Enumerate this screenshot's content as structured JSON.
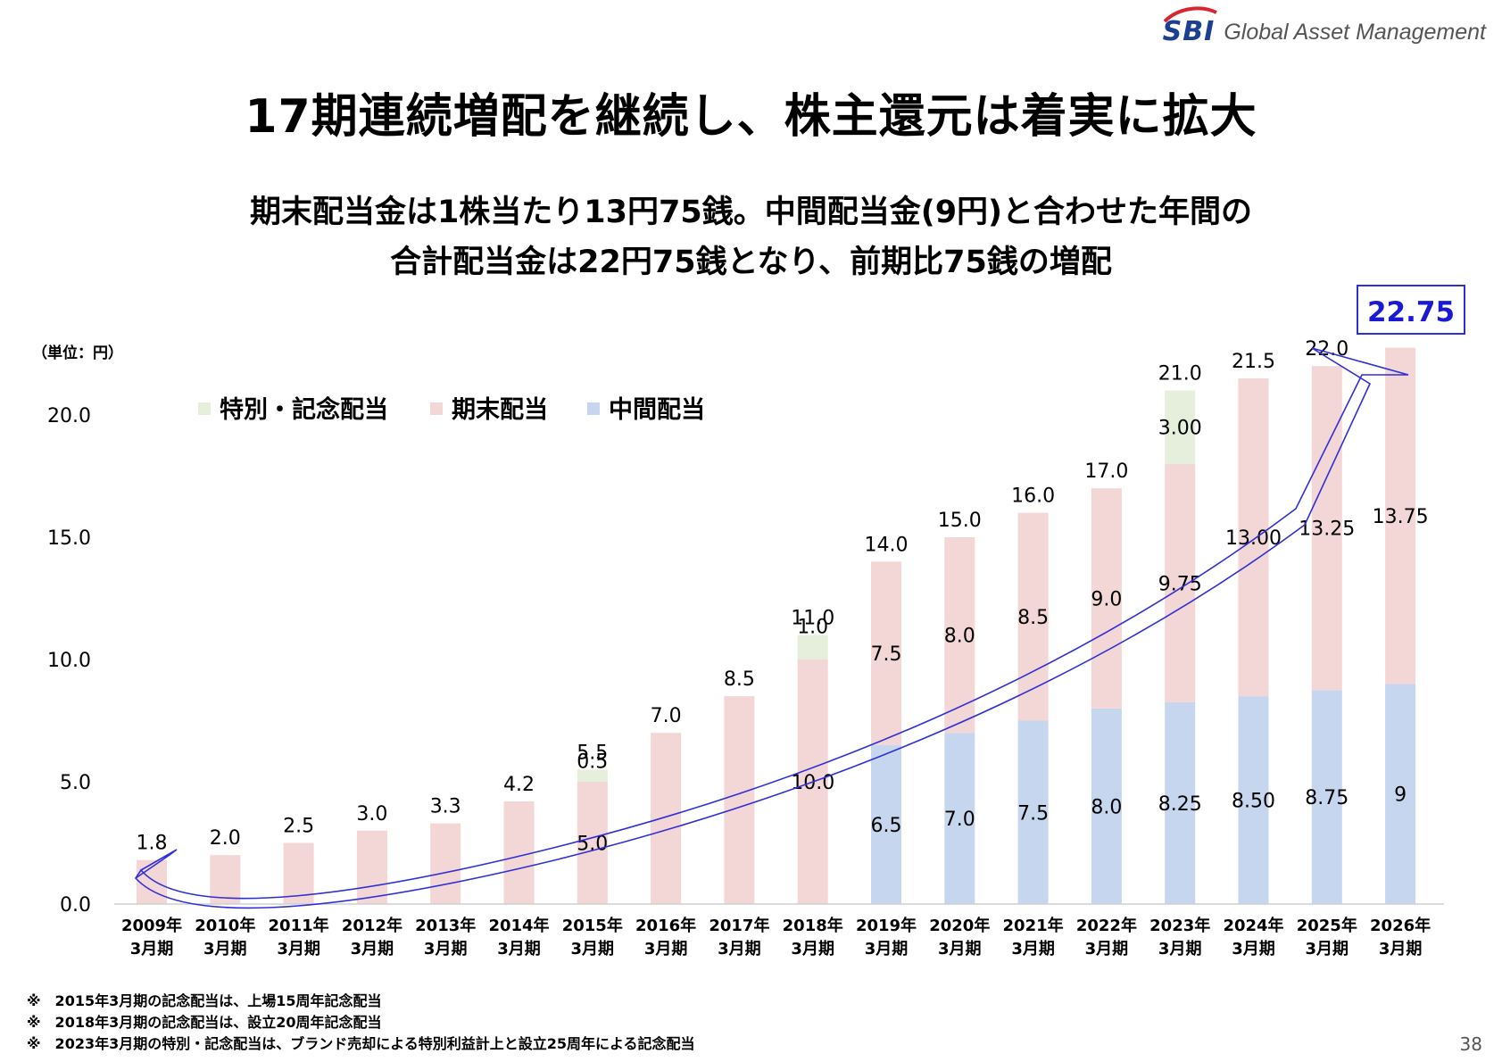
{
  "header": {
    "brand_mark": "SBI",
    "brand_text": "Global Asset Management",
    "title": "17期連続増配を継続し、株主還元は着実に拡大",
    "subtitle_line1": "期末配当金は1株当たり13円75銭。中間配当金(9円)と合わせた年間の",
    "subtitle_line2": "合計配当金は22円75銭となり、前期比75銭の増配"
  },
  "footer": {
    "notes": [
      "※　2015年3月期の記念配当は、上場15周年記念配当",
      "※　2018年3月期の記念配当は、設立20周年記念配当",
      "※　2023年3月期の特別・記念配当は、ブランド売却による特別利益計上と設立25周年による記念配当"
    ],
    "page_number": "38"
  },
  "colors": {
    "special": "#e6eedc",
    "year_end": "#f3d6d6",
    "interim": "#c6d6ee",
    "arrow": "#2f2fd8",
    "highlight": "#1a1ad0"
  },
  "chart_data": {
    "type": "bar",
    "stacked": true,
    "unit_label": "（単位：円）",
    "ylim": [
      0,
      22.75
    ],
    "yticks": [
      "0.0",
      "5.0",
      "10.0",
      "15.0",
      "20.0"
    ],
    "ytick_values": [
      0,
      5,
      10,
      15,
      20
    ],
    "grid": false,
    "legend_position": "top-left",
    "categories": [
      [
        "2009年",
        "3月期"
      ],
      [
        "2010年",
        "3月期"
      ],
      [
        "2011年",
        "3月期"
      ],
      [
        "2012年",
        "3月期"
      ],
      [
        "2013年",
        "3月期"
      ],
      [
        "2014年",
        "3月期"
      ],
      [
        "2015年",
        "3月期"
      ],
      [
        "2016年",
        "3月期"
      ],
      [
        "2017年",
        "3月期"
      ],
      [
        "2018年",
        "3月期"
      ],
      [
        "2019年",
        "3月期"
      ],
      [
        "2020年",
        "3月期"
      ],
      [
        "2021年",
        "3月期"
      ],
      [
        "2022年",
        "3月期"
      ],
      [
        "2023年",
        "3月期"
      ],
      [
        "2024年",
        "3月期"
      ],
      [
        "2025年",
        "3月期"
      ],
      [
        "2026年",
        "3月期"
      ]
    ],
    "series": [
      {
        "name": "中間配当",
        "color": "#c6d6ee",
        "values": [
          0,
          0,
          0,
          0,
          0,
          0,
          0,
          0,
          0,
          0,
          6.5,
          7.0,
          7.5,
          8.0,
          8.25,
          8.5,
          8.75,
          9
        ],
        "labels": [
          "",
          "",
          "",
          "",
          "",
          "",
          "",
          "",
          "",
          "",
          "6.5",
          "7.0",
          "7.5",
          "8.0",
          "8.25",
          "8.50",
          "8.75",
          "9"
        ]
      },
      {
        "name": "期末配当",
        "color": "#f3d6d6",
        "values": [
          1.8,
          2.0,
          2.5,
          3.0,
          3.3,
          4.2,
          5.0,
          7.0,
          8.5,
          10.0,
          7.5,
          8.0,
          8.5,
          9.0,
          9.75,
          13.0,
          13.25,
          13.75
        ],
        "labels": [
          "",
          "",
          "",
          "",
          "",
          "",
          "5.0",
          "",
          "",
          "10.0",
          "7.5",
          "8.0",
          "8.5",
          "9.0",
          "9.75",
          "13.00",
          "13.25",
          "13.75"
        ]
      },
      {
        "name": "特別・記念配当",
        "color": "#e6eedc",
        "values": [
          0,
          0,
          0,
          0,
          0,
          0,
          0.5,
          0,
          0,
          1.0,
          0,
          0,
          0,
          0,
          3.0,
          0,
          0,
          0
        ],
        "labels": [
          "",
          "",
          "",
          "",
          "",
          "",
          "0.5",
          "",
          "",
          "1.0",
          "",
          "",
          "",
          "",
          "3.00",
          "",
          "",
          ""
        ]
      }
    ],
    "totals": [
      1.8,
      2.0,
      2.5,
      3.0,
      3.3,
      4.2,
      5.5,
      7.0,
      8.5,
      11.0,
      14.0,
      15.0,
      16.0,
      17.0,
      21.0,
      21.5,
      22.0,
      22.75
    ],
    "total_labels": [
      "1.8",
      "2.0",
      "2.5",
      "3.0",
      "3.3",
      "4.2",
      "5.5",
      "7.0",
      "8.5",
      "11.0",
      "14.0",
      "15.0",
      "16.0",
      "17.0",
      "21.0",
      "21.5",
      "22.0",
      "22.75"
    ],
    "legend": [
      "特別・記念配当",
      "期末配当",
      "中間配当"
    ]
  }
}
